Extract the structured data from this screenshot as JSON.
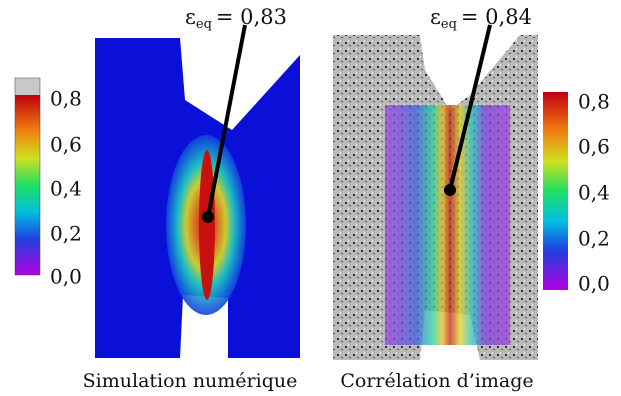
{
  "panels": [
    {
      "caption": "Simulation numérique",
      "annotation": {
        "symbol": "ε",
        "subscript": "eq",
        "value": "= 0,83"
      }
    },
    {
      "caption": "Corrélation d’image",
      "annotation": {
        "symbol": "ε",
        "subscript": "eq",
        "value": "= 0,84"
      }
    }
  ],
  "colorbars": [
    {
      "ticks": [
        "0,0",
        "0,2",
        "0,4",
        "0,6",
        "0,8"
      ]
    },
    {
      "ticks": [
        "0,0",
        "0,2",
        "0,4",
        "0,6",
        "0,8"
      ]
    }
  ]
}
